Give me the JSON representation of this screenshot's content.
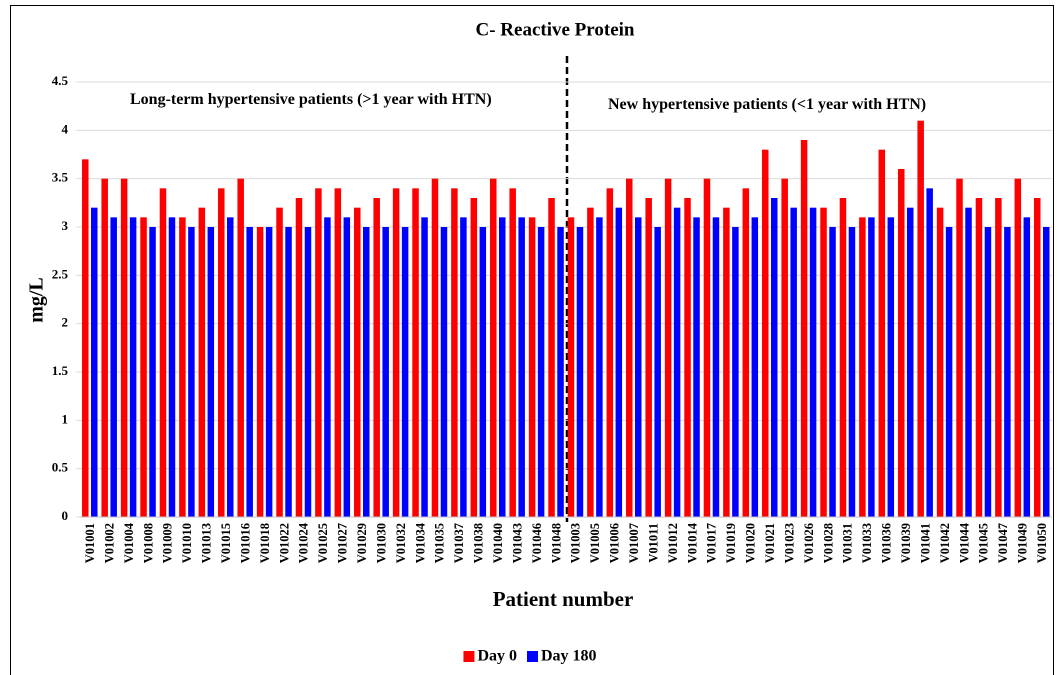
{
  "chart_data": {
    "type": "bar",
    "title": "C- Reactive Protein",
    "x_label": "Patient number",
    "y_label": "mg/L",
    "annotations": [
      "Long-term hypertensive patients (>1 year with HTN)",
      "New hypertensive patients (<1 year with HTN)"
    ],
    "categories": [
      "V01001",
      "V01002",
      "V01004",
      "V01008",
      "V01009",
      "V01010",
      "V01013",
      "V01015",
      "V01016",
      "V01018",
      "V01022",
      "V01024",
      "V01025",
      "V01027",
      "V01029",
      "V01030",
      "V01032",
      "V01034",
      "V01035",
      "V01037",
      "V01038",
      "V01040",
      "V01043",
      "V01046",
      "V01048",
      "V01003",
      "V01005",
      "V01006",
      "V01007",
      "V01011",
      "V01012",
      "V01014",
      "V01017",
      "V01019",
      "V01020",
      "V01021",
      "V01023",
      "V01026",
      "V01028",
      "V01031",
      "V01033",
      "V01036",
      "V01039",
      "V01041",
      "V01042",
      "V01044",
      "V01045",
      "V01047",
      "V01049",
      "V01050"
    ],
    "series": [
      {
        "name": "Day 0",
        "color": "#ff0000",
        "values": [
          3.7,
          3.5,
          3.5,
          3.1,
          3.4,
          3.1,
          3.2,
          3.4,
          3.5,
          3.0,
          3.2,
          3.3,
          3.4,
          3.4,
          3.2,
          3.3,
          3.4,
          3.4,
          3.5,
          3.4,
          3.3,
          3.5,
          3.4,
          3.1,
          3.3,
          3.1,
          3.2,
          3.4,
          3.5,
          3.3,
          3.5,
          3.3,
          3.5,
          3.2,
          3.4,
          3.8,
          3.5,
          3.9,
          3.2,
          3.3,
          3.1,
          3.8,
          3.6,
          4.1,
          3.2,
          3.5,
          3.3,
          3.3,
          3.5,
          3.3
        ]
      },
      {
        "name": "Day 180",
        "color": "#0000ff",
        "values": [
          3.2,
          3.1,
          3.1,
          3.0,
          3.1,
          3.0,
          3.0,
          3.1,
          3.0,
          3.0,
          3.0,
          3.0,
          3.1,
          3.1,
          3.0,
          3.0,
          3.0,
          3.1,
          3.0,
          3.1,
          3.0,
          3.1,
          3.1,
          3.0,
          3.0,
          3.0,
          3.1,
          3.2,
          3.1,
          3.0,
          3.2,
          3.1,
          3.1,
          3.0,
          3.1,
          3.3,
          3.2,
          3.2,
          3.0,
          3.0,
          3.1,
          3.1,
          3.2,
          3.4,
          3.0,
          3.2,
          3.0,
          3.0,
          3.1,
          3.0
        ]
      }
    ],
    "ylim": [
      0,
      4.5
    ],
    "yticks": [
      0,
      0.5,
      1,
      1.5,
      2,
      2.5,
      3,
      3.5,
      4,
      4.5
    ],
    "grid": true,
    "legend": "bottom"
  }
}
